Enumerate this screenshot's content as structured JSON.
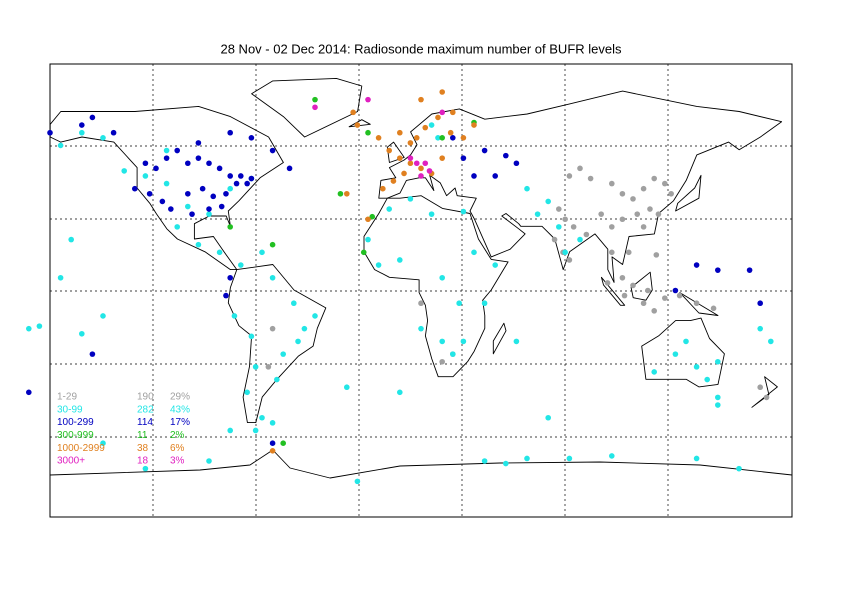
{
  "chart_data": {
    "type": "scatter",
    "title": "28 Nov - 02 Dec 2014: Radiosonde maximum number of BUFR levels",
    "xlim": [
      -165,
      185
    ],
    "ylim": [
      -89,
      89
    ],
    "series": [
      {
        "name": "1-29",
        "color": "#a0a0a0",
        "count": 190,
        "percent": {
          "value": 29,
          "label": "29%"
        },
        "x": [
          80,
          85,
          90,
          100,
          105,
          110,
          115,
          120,
          75,
          78,
          82,
          88,
          95,
          100,
          105,
          112,
          118,
          125,
          100,
          108,
          115,
          122,
          128,
          105,
          110,
          117,
          77,
          73,
          80,
          115,
          120,
          125,
          140,
          148,
          132,
          121,
          106,
          98,
          170,
          173,
          25,
          20,
          -60,
          -62,
          10
        ],
        "values": [
          45,
          48,
          44,
          42,
          38,
          36,
          40,
          44,
          32,
          28,
          25,
          22,
          30,
          25,
          28,
          30,
          32,
          42,
          15,
          15,
          25,
          30,
          38,
          5,
          2,
          0,
          15,
          20,
          12,
          -5,
          -8,
          -3,
          -5,
          -7,
          -2,
          14,
          -2,
          3,
          -38,
          -42,
          -25,
          -28,
          -15,
          -30,
          -5
        ]
      },
      {
        "name": "30-99",
        "color": "#22e6e6",
        "count": 282,
        "percent": {
          "value": 43,
          "label": "43%"
        },
        "x": [
          -130,
          -120,
          -110,
          -100,
          -90,
          -80,
          -70,
          -160,
          -155,
          -150,
          -140,
          -105,
          -95,
          -85,
          -75,
          -65,
          -60,
          -50,
          -45,
          -55,
          -70,
          -78,
          -68,
          -58,
          -48,
          -40,
          -72,
          -65,
          -60,
          -68,
          -5,
          5,
          15,
          30,
          35,
          -10,
          0,
          20,
          28,
          45,
          -15,
          10,
          20,
          25,
          30,
          40,
          55,
          60,
          65,
          70,
          75,
          78,
          85,
          135,
          130,
          140,
          145,
          150,
          120,
          150,
          170,
          175,
          -175,
          -170,
          -150,
          -140,
          0,
          -90,
          -120,
          40,
          50,
          60,
          80,
          100,
          140,
          160,
          -140,
          -80,
          -20,
          70,
          150,
          -25,
          -160,
          -110,
          15,
          18
        ],
        "values": [
          47,
          45,
          42,
          33,
          30,
          40,
          44,
          57,
          20,
          62,
          60,
          25,
          18,
          15,
          10,
          15,
          5,
          -5,
          -15,
          -25,
          -18,
          -10,
          -30,
          -35,
          -20,
          -10,
          -40,
          -50,
          -52,
          -55,
          32,
          36,
          30,
          31,
          15,
          10,
          12,
          5,
          -5,
          10,
          20,
          -15,
          -20,
          -25,
          -20,
          -5,
          -20,
          40,
          30,
          35,
          25,
          15,
          20,
          -20,
          -25,
          -30,
          -35,
          -28,
          -32,
          -42,
          -15,
          -20,
          -15,
          -14,
          -17,
          -10,
          -40,
          -67,
          -70,
          -67,
          -68,
          -66,
          -66,
          -65,
          -66,
          -70,
          -60,
          -55,
          -75,
          -50,
          -45,
          -38,
          5,
          55,
          65,
          60
        ]
      },
      {
        "name": "100-299",
        "color": "#0000c0",
        "count": 114,
        "percent": {
          "value": 17,
          "label": "17%"
        },
        "x": [
          -120,
          -115,
          -110,
          -105,
          -100,
          -95,
          -90,
          -85,
          -80,
          -75,
          -70,
          -125,
          -118,
          -112,
          -100,
          -93,
          -88,
          -82,
          -77,
          -72,
          -108,
          -98,
          -90,
          -84,
          -150,
          -145,
          -165,
          -135,
          -95,
          -80,
          -70,
          -60,
          -52,
          30,
          40,
          50,
          35,
          45,
          55,
          140,
          150,
          165,
          170,
          -145,
          -175,
          -80,
          -82,
          -60,
          25,
          130
        ],
        "values": [
          50,
          48,
          52,
          55,
          50,
          52,
          50,
          48,
          45,
          45,
          44,
          40,
          38,
          35,
          38,
          40,
          37,
          38,
          42,
          42,
          32,
          30,
          32,
          33,
          65,
          68,
          62,
          62,
          58,
          62,
          60,
          55,
          48,
          52,
          55,
          53,
          45,
          45,
          50,
          10,
          8,
          8,
          -5,
          -25,
          -40,
          5,
          -2,
          -60,
          60,
          0
        ]
      },
      {
        "name": "300-999",
        "color": "#22c022",
        "count": 11,
        "percent": {
          "value": 2,
          "label": "2%"
        },
        "x": [
          -80,
          -60,
          -40,
          -28,
          -13,
          -17,
          20,
          35,
          -15,
          -55
        ],
        "values": [
          25,
          18,
          75,
          38,
          29,
          15,
          60,
          66,
          62,
          -60
        ]
      },
      {
        "name": "1000-2999",
        "color": "#e08020",
        "count": 38,
        "percent": {
          "value": 6,
          "label": "6%"
        },
        "x": [
          -5,
          0,
          5,
          10,
          15,
          20,
          -3,
          2,
          8,
          12,
          18,
          24,
          30,
          -8,
          -15,
          -25,
          10,
          20,
          25,
          35,
          -20,
          -22,
          -10,
          0,
          5,
          -60
        ],
        "values": [
          55,
          52,
          50,
          48,
          46,
          52,
          43,
          46,
          60,
          64,
          68,
          62,
          60,
          40,
          28,
          38,
          75,
          78,
          70,
          65,
          65,
          70,
          60,
          62,
          58,
          -63
        ]
      },
      {
        "name": "3000+",
        "color": "#e020c0",
        "count": 18,
        "percent": {
          "value": 3,
          "label": "3%"
        },
        "x": [
          5,
          8,
          12,
          14,
          10,
          -40,
          -15,
          20
        ],
        "values": [
          52,
          50,
          50,
          47,
          45,
          72,
          75,
          70
        ]
      }
    ]
  }
}
